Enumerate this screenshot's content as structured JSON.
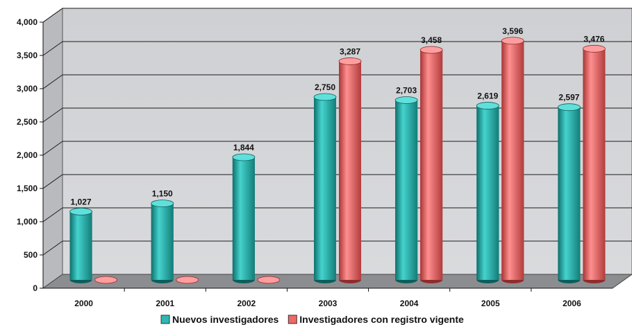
{
  "chart_data": {
    "type": "bar",
    "categories": [
      "2000",
      "2001",
      "2002",
      "2003",
      "2004",
      "2005",
      "2006"
    ],
    "series": [
      {
        "name": "Nuevos investigadores",
        "values": [
          1027,
          1150,
          1844,
          2750,
          2703,
          2619,
          2597
        ],
        "labels": [
          "1,027",
          "1,150",
          "1,844",
          "2,750",
          "2,703",
          "2,619",
          "2,597"
        ],
        "color": "#2fb7b3"
      },
      {
        "name": "Investigadores con registro vigente",
        "values": [
          0,
          0,
          0,
          3287,
          3458,
          3596,
          3476
        ],
        "labels": [
          "",
          "",
          "",
          "3,287",
          "3,458",
          "3,596",
          "3,476"
        ],
        "color": "#ef6767"
      }
    ],
    "ylim": [
      0,
      4000
    ],
    "yticks": [
      0,
      500,
      1000,
      1500,
      2000,
      2500,
      3000,
      3500,
      4000
    ],
    "ytick_labels": [
      "0",
      "500",
      "1,000",
      "1,500",
      "2,000",
      "2,500",
      "3,000",
      "3,500",
      "4,000"
    ],
    "grid": true,
    "legend_position": "bottom",
    "three_d": true
  }
}
